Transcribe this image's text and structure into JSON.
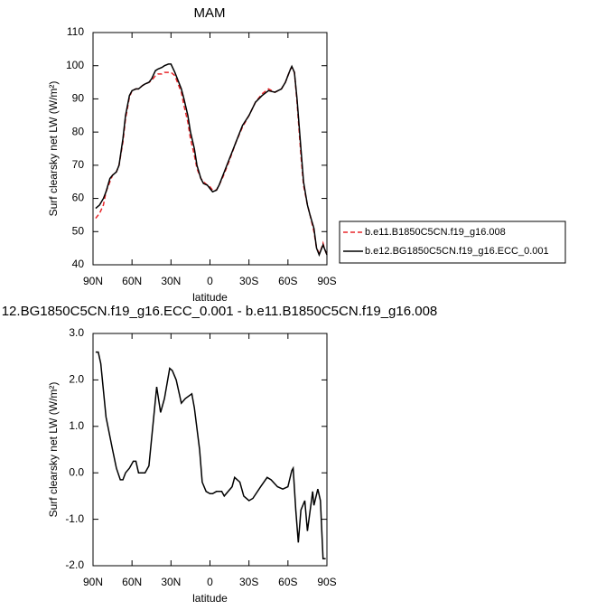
{
  "chart_data": [
    {
      "type": "line",
      "title": "MAM",
      "xlabel": "latitude",
      "ylabel": "Surf clearsky net LW (W/m²)",
      "x": [
        88,
        85,
        82,
        80,
        77,
        75,
        72,
        70,
        67,
        65,
        62,
        60,
        57,
        55,
        52,
        50,
        47,
        45,
        42,
        40,
        37,
        35,
        32,
        30,
        27,
        25,
        22,
        20,
        17,
        15,
        12,
        10,
        7,
        5,
        2,
        0,
        -2,
        -5,
        -7,
        -10,
        -15,
        -20,
        -25,
        -30,
        -35,
        -40,
        -45,
        -50,
        -55,
        -58,
        -60,
        -62,
        -63,
        -65,
        -67,
        -70,
        -72,
        -75,
        -77,
        -80,
        -82,
        -84,
        -85,
        -87,
        -88,
        -90
      ],
      "series": [
        {
          "name": "b.e11.B1850C5CN.f19_g16.008",
          "color": "#e8262a",
          "line_style": "dashed",
          "values": [
            54,
            55.5,
            58,
            62,
            65,
            67,
            68,
            70,
            77,
            84,
            90.5,
            92.5,
            93,
            93,
            94,
            94.5,
            95,
            95.5,
            97,
            97.5,
            97.5,
            98,
            98,
            98,
            97,
            95,
            92,
            88,
            83,
            78,
            73,
            69,
            66,
            65,
            64,
            63.5,
            62.5,
            62.5,
            64,
            66.5,
            71.5,
            77,
            81.5,
            85,
            89,
            91.5,
            93,
            92,
            93,
            95,
            97,
            99,
            99.5,
            98,
            89,
            73,
            64,
            58,
            55,
            50,
            45,
            43.5,
            44,
            46.5,
            45,
            43
          ]
        },
        {
          "name": "b.e12.BG1850C5CN.f19_g16.ECC_0.001",
          "color": "#000000",
          "line_style": "solid",
          "values": [
            57,
            58,
            60,
            62,
            66,
            67,
            68,
            70,
            78,
            85,
            91,
            92.5,
            93,
            93,
            94,
            94.5,
            95,
            96,
            98.5,
            99,
            99.5,
            100,
            100.5,
            100.5,
            98,
            96,
            93,
            90,
            85,
            80,
            75,
            70,
            66,
            64.5,
            64,
            63,
            62,
            62.5,
            64,
            67,
            72,
            77,
            82,
            85,
            89,
            91,
            92.5,
            92,
            93,
            95,
            97,
            99,
            99.8,
            98,
            90,
            75,
            65,
            58,
            55,
            51,
            45,
            43,
            44,
            46,
            45,
            43
          ]
        }
      ],
      "xlim": [
        90,
        -90
      ],
      "xticks": [
        {
          "value": 90,
          "label": "90N"
        },
        {
          "value": 60,
          "label": "60N"
        },
        {
          "value": 30,
          "label": "30N"
        },
        0,
        {
          "value": -30,
          "label": "30S"
        },
        {
          "value": -60,
          "label": "60S"
        },
        {
          "value": -90,
          "label": "90S"
        }
      ],
      "ylim": [
        40,
        110
      ],
      "yticks": [
        40,
        50,
        60,
        70,
        80,
        90,
        100,
        110
      ],
      "legend": "right"
    },
    {
      "type": "line",
      "title": "12.BG1850C5CN.f19_g16.ECC_0.001 - b.e11.B1850C5CN.f19_g16.008",
      "xlabel": "latitude",
      "ylabel": "Surf clearsky net LW (W/m²)",
      "x": [
        88,
        86,
        84,
        80,
        75,
        72,
        69,
        67,
        65,
        62,
        59,
        57,
        55,
        50,
        47,
        41,
        38,
        35,
        31,
        29,
        26,
        22,
        19,
        14,
        12,
        8,
        6,
        3,
        0,
        -2,
        -5,
        -9,
        -11,
        -17,
        -19,
        -23,
        -26,
        -30,
        -33,
        -39,
        -44,
        -47,
        -52,
        -56,
        -60,
        -63,
        -64,
        -66,
        -68,
        -70,
        -73,
        -75,
        -79,
        -80,
        -83,
        -85,
        -87,
        -89
      ],
      "values": [
        2.6,
        2.6,
        2.35,
        1.2,
        0.5,
        0.1,
        -0.15,
        -0.15,
        0.0,
        0.1,
        0.25,
        0.25,
        0.0,
        0.0,
        0.15,
        1.85,
        1.3,
        1.6,
        2.25,
        2.2,
        2.0,
        1.5,
        1.6,
        1.7,
        1.4,
        0.5,
        -0.2,
        -0.4,
        -0.45,
        -0.45,
        -0.4,
        -0.4,
        -0.5,
        -0.3,
        -0.1,
        -0.2,
        -0.5,
        -0.6,
        -0.55,
        -0.3,
        -0.1,
        -0.15,
        -0.3,
        -0.35,
        -0.3,
        0.05,
        0.1,
        -0.8,
        -1.5,
        -0.8,
        -0.6,
        -1.25,
        -0.4,
        -0.7,
        -0.35,
        -0.6,
        -1.85,
        -1.85
      ],
      "color": "#000000",
      "xlim": [
        90,
        -90
      ],
      "xticks": [
        {
          "value": 90,
          "label": "90N"
        },
        {
          "value": 60,
          "label": "60N"
        },
        {
          "value": 30,
          "label": "30N"
        },
        0,
        {
          "value": -30,
          "label": "30S"
        },
        {
          "value": -60,
          "label": "60S"
        },
        {
          "value": -90,
          "label": "90S"
        }
      ],
      "ylim": [
        -2,
        3
      ],
      "yticks": [
        {
          "value": -2,
          "label": "-2.0"
        },
        {
          "value": -1,
          "label": "-1.0"
        },
        {
          "value": 0,
          "label": "0.0"
        },
        {
          "value": 1,
          "label": "1.0"
        },
        {
          "value": 2,
          "label": "2.0"
        },
        {
          "value": 3,
          "label": "3.0"
        }
      ]
    }
  ]
}
